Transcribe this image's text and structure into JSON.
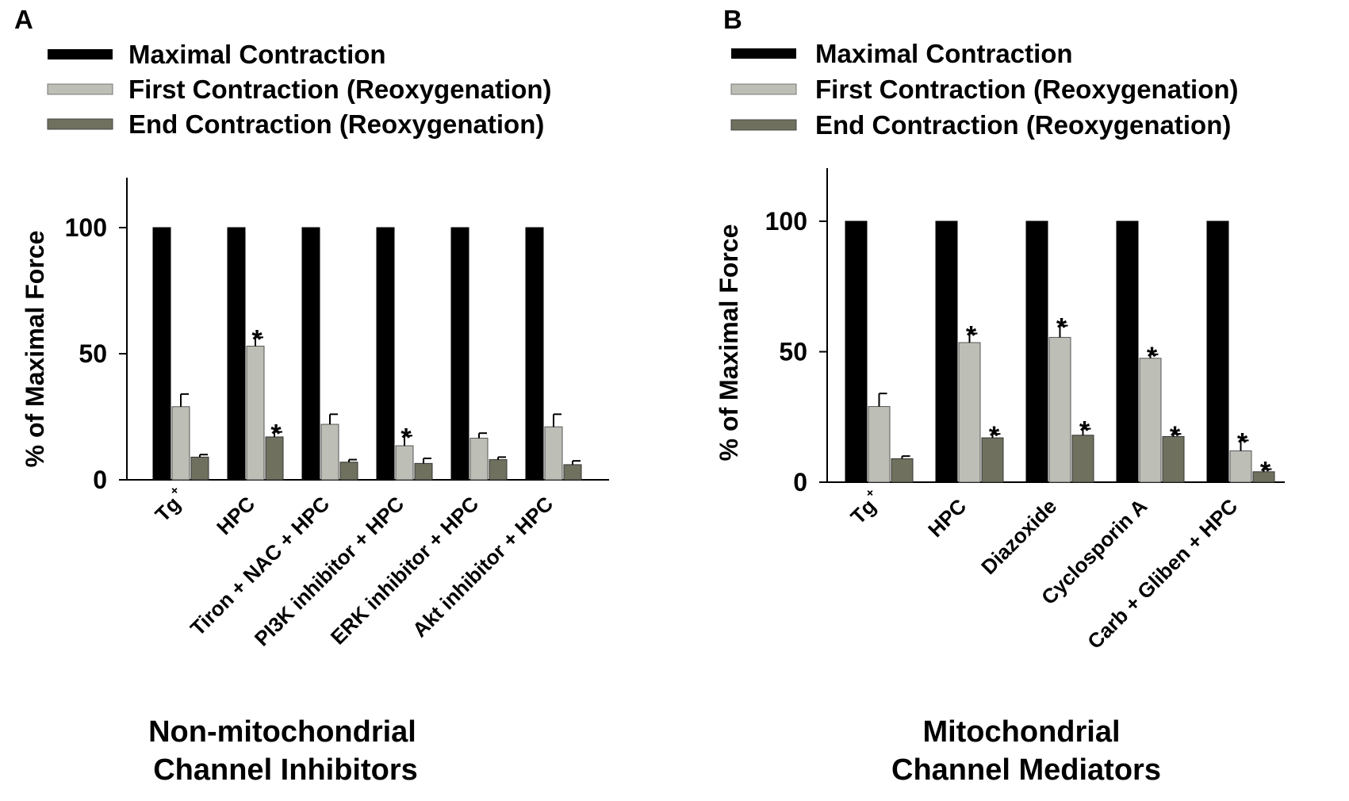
{
  "legend": {
    "colors": {
      "maximal": "#000000",
      "first": "#bdbfb6",
      "end": "#6f705e"
    }
  },
  "chart_data": [
    {
      "panel": "A",
      "type": "bar",
      "ylabel": "% of Maximal Force",
      "ylim": [
        0,
        120
      ],
      "yticks": [
        "0",
        "50",
        "100"
      ],
      "legend": [
        "Maximal Contraction",
        "First Contraction (Reoxygenation)",
        "End Contraction (Reoxygenation)"
      ],
      "categories": [
        "Tg",
        "HPC",
        "Tiron + NAC + HPC",
        "PI3K inhibitor + HPC",
        "ERK inhibitor + HPC",
        "Akt inhibitor + HPC"
      ],
      "category_superscripts": [
        "+",
        "",
        "",
        "",
        "",
        ""
      ],
      "series": [
        {
          "name": "Maximal Contraction",
          "values": [
            100,
            100,
            100,
            100,
            100,
            100
          ],
          "errors": [
            0,
            0,
            0,
            0,
            0,
            0
          ],
          "significant": [
            false,
            false,
            false,
            false,
            false,
            false
          ]
        },
        {
          "name": "First Contraction (Reoxygenation)",
          "values": [
            29,
            53,
            22,
            13.5,
            16.5,
            21
          ],
          "errors": [
            5,
            3.5,
            4,
            4,
            2,
            5
          ],
          "significant": [
            false,
            true,
            false,
            true,
            false,
            false
          ]
        },
        {
          "name": "End Contraction (Reoxygenation)",
          "values": [
            9,
            17,
            7,
            6.5,
            8,
            6
          ],
          "errors": [
            1,
            2,
            1,
            2,
            1,
            1.5
          ],
          "significant": [
            false,
            true,
            false,
            false,
            false,
            false
          ]
        }
      ],
      "significance_marker": "*",
      "caption_lines": [
        "Non-mitochondrial",
        "Channel Inhibitors"
      ]
    },
    {
      "panel": "B",
      "type": "bar",
      "ylabel": "% of Maximal Force",
      "ylim": [
        0,
        120
      ],
      "yticks": [
        "0",
        "50",
        "100"
      ],
      "legend": [
        "Maximal Contraction",
        "First Contraction (Reoxygenation)",
        "End Contraction (Reoxygenation)"
      ],
      "categories": [
        "Tg",
        "HPC",
        "Diazoxide",
        "Cyclosporin A",
        "Carb + Gliben + HPC"
      ],
      "category_superscripts": [
        "+",
        "",
        "",
        "",
        ""
      ],
      "series": [
        {
          "name": "Maximal Contraction",
          "values": [
            100,
            100,
            100,
            100,
            100
          ],
          "errors": [
            0,
            0,
            0,
            0,
            0
          ],
          "significant": [
            false,
            false,
            false,
            false,
            false
          ]
        },
        {
          "name": "First Contraction (Reoxygenation)",
          "values": [
            29,
            53.5,
            55.5,
            47.5,
            12
          ],
          "errors": [
            5,
            3.5,
            4.5,
            1.5,
            4
          ],
          "significant": [
            false,
            true,
            true,
            true,
            true
          ]
        },
        {
          "name": "End Contraction (Reoxygenation)",
          "values": [
            9,
            17,
            18,
            17.5,
            4
          ],
          "errors": [
            1,
            1.5,
            2.5,
            1,
            1
          ],
          "significant": [
            false,
            true,
            true,
            true,
            true
          ]
        }
      ],
      "significance_marker": "*",
      "caption_lines": [
        "Mitochondrial",
        "Channel Mediators"
      ]
    }
  ]
}
